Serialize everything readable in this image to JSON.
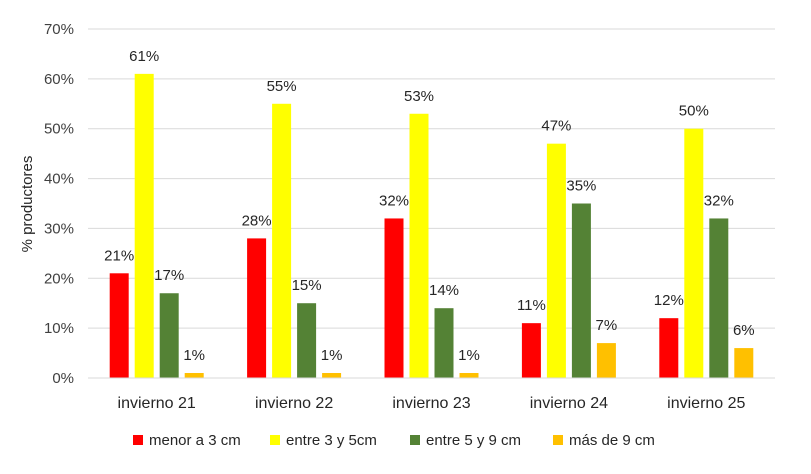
{
  "chart_data": {
    "type": "bar",
    "ylabel": "% productores",
    "ylim": [
      0,
      70
    ],
    "yticks": [
      "0%",
      "10%",
      "20%",
      "30%",
      "40%",
      "50%",
      "60%",
      "70%"
    ],
    "grid": true,
    "legend_position": "bottom",
    "categories": [
      "invierno 21",
      "invierno 22",
      "invierno 23",
      "invierno 24",
      "invierno 25"
    ],
    "series": [
      {
        "name": "menor a 3 cm",
        "color": "#FF0000",
        "values": [
          21,
          28,
          32,
          11,
          12
        ],
        "labels": [
          "21%",
          "28%",
          "32%",
          "11%",
          "12%"
        ]
      },
      {
        "name": "entre 3 y 5cm",
        "color": "#FFFF00",
        "values": [
          61,
          55,
          53,
          47,
          50
        ],
        "labels": [
          "61%",
          "55%",
          "53%",
          "47%",
          "50%"
        ]
      },
      {
        "name": "entre 5 y 9 cm",
        "color": "#548235",
        "values": [
          17,
          15,
          14,
          35,
          32
        ],
        "labels": [
          "17%",
          "15%",
          "14%",
          "35%",
          "32%"
        ]
      },
      {
        "name": "más de 9 cm",
        "color": "#FFC000",
        "values": [
          1,
          1,
          1,
          7,
          6
        ],
        "labels": [
          "1%",
          "1%",
          "1%",
          "7%",
          "6%"
        ]
      }
    ]
  }
}
